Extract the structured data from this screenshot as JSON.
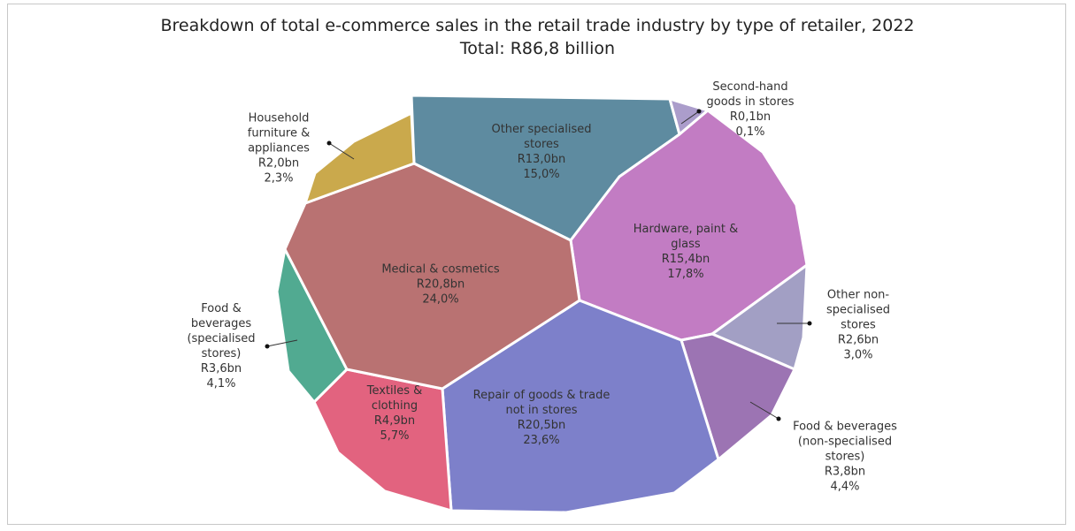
{
  "chart_data": {
    "type": "voronoi",
    "title": "Breakdown of total e-commerce sales in the retail trade industry by type of retailer, 2022",
    "subtitle": "Total: R86,8 billion",
    "categories": [
      "Other specialised stores",
      "Second-hand goods in stores",
      "Hardware, paint & glass",
      "Other non-specialised stores",
      "Food & beverages (non-specialised stores)",
      "Repair of goods & trade not in stores",
      "Textiles & clothing",
      "Food & beverages (specialised stores)",
      "Medical & cosmetics",
      "Household furniture & appliances"
    ],
    "values": [
      15.0,
      0.1,
      17.8,
      3.0,
      4.4,
      23.6,
      5.7,
      4.1,
      24.0,
      2.3
    ],
    "value_labels": [
      "15,0%",
      "0,1%",
      "17,8%",
      "3,0%",
      "4,4%",
      "23,6%",
      "5,7%",
      "4,1%",
      "24,0%",
      "2,3%"
    ],
    "sales": [
      13.0,
      0.1,
      15.4,
      2.6,
      3.8,
      20.5,
      4.9,
      3.6,
      20.8,
      2.0
    ],
    "sales_labels": [
      "R13,0bn",
      "R0,1bn",
      "R15,4bn",
      "R2,6bn",
      "R3,8bn",
      "R20,5bn",
      "R4,9bn",
      "R3,6bn",
      "R20,8bn",
      "R2,0bn"
    ],
    "colors": [
      "#5e8ba0",
      "#ab9dcb",
      "#c27cc3",
      "#a29fc4",
      "#9c74b3",
      "#7d80ca",
      "#e2637f",
      "#51aa91",
      "#b97272",
      "#caa94c"
    ]
  }
}
